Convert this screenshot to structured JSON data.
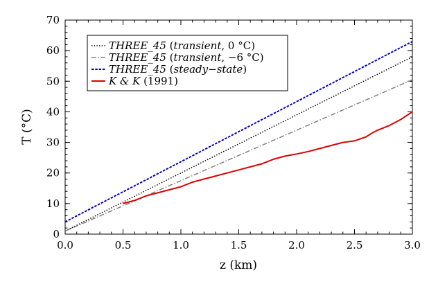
{
  "chart_data": {
    "type": "line",
    "xlabel": "z (km)",
    "ylabel": "T (°C)",
    "xlim": [
      0.0,
      3.0
    ],
    "ylim": [
      0,
      70
    ],
    "xticks": [
      0.0,
      0.5,
      1.0,
      1.5,
      2.0,
      2.5,
      3.0
    ],
    "xtick_labels": [
      "0.0",
      "0.5",
      "1.0",
      "1.5",
      "2.0",
      "2.5",
      "3.0"
    ],
    "yticks": [
      0,
      10,
      20,
      30,
      40,
      50,
      60,
      70
    ],
    "ytick_labels": [
      "0",
      "10",
      "20",
      "30",
      "40",
      "50",
      "60",
      "70"
    ],
    "grid": false,
    "legend_position": "top-left",
    "series": [
      {
        "name": "THREE_45 (transient, 0 °C)",
        "legend_parts": [
          {
            "text": "THREE_45",
            "italic": true
          },
          {
            "text": " (",
            "italic": false
          },
          {
            "text": "transient",
            "italic": true
          },
          {
            "text": ", 0 °C)",
            "italic": false
          }
        ],
        "color": "#000000",
        "style": "dotted",
        "x": [
          0.0,
          3.0
        ],
        "y": [
          1.0,
          58.0
        ]
      },
      {
        "name": "THREE_45 (transient, −6 °C)",
        "legend_parts": [
          {
            "text": "THREE_45",
            "italic": true
          },
          {
            "text": " (",
            "italic": false
          },
          {
            "text": "transient",
            "italic": true
          },
          {
            "text": ", −6 °C)",
            "italic": false
          }
        ],
        "color": "#808080",
        "style": "dashdot",
        "x": [
          0.0,
          3.0
        ],
        "y": [
          1.0,
          50.5
        ]
      },
      {
        "name": "THREE_45 (steady−state)",
        "legend_parts": [
          {
            "text": "THREE_45",
            "italic": true
          },
          {
            "text": " (",
            "italic": false
          },
          {
            "text": "steady−state",
            "italic": true
          },
          {
            "text": ")",
            "italic": false
          }
        ],
        "color": "#0000cc",
        "style": "dashed",
        "x": [
          0.0,
          3.0
        ],
        "y": [
          4.0,
          63.0
        ]
      },
      {
        "name": "K & K (1991)",
        "legend_parts": [
          {
            "text": "K & K",
            "italic": true
          },
          {
            "text": " (1991)",
            "italic": false
          }
        ],
        "color": "#dd0000",
        "style": "solid",
        "x": [
          0.5,
          0.6,
          0.7,
          0.8,
          0.9,
          1.0,
          1.1,
          1.2,
          1.3,
          1.4,
          1.5,
          1.6,
          1.7,
          1.8,
          1.9,
          2.0,
          2.1,
          2.2,
          2.3,
          2.4,
          2.5,
          2.6,
          2.65,
          2.7,
          2.8,
          2.9,
          3.0
        ],
        "y": [
          10.0,
          11.0,
          12.5,
          13.5,
          14.5,
          15.5,
          17.0,
          18.0,
          19.0,
          20.0,
          21.0,
          22.0,
          23.0,
          24.5,
          25.5,
          26.2,
          27.0,
          28.0,
          29.0,
          30.0,
          30.5,
          31.8,
          33.0,
          34.0,
          35.5,
          37.5,
          40.0
        ]
      }
    ]
  }
}
